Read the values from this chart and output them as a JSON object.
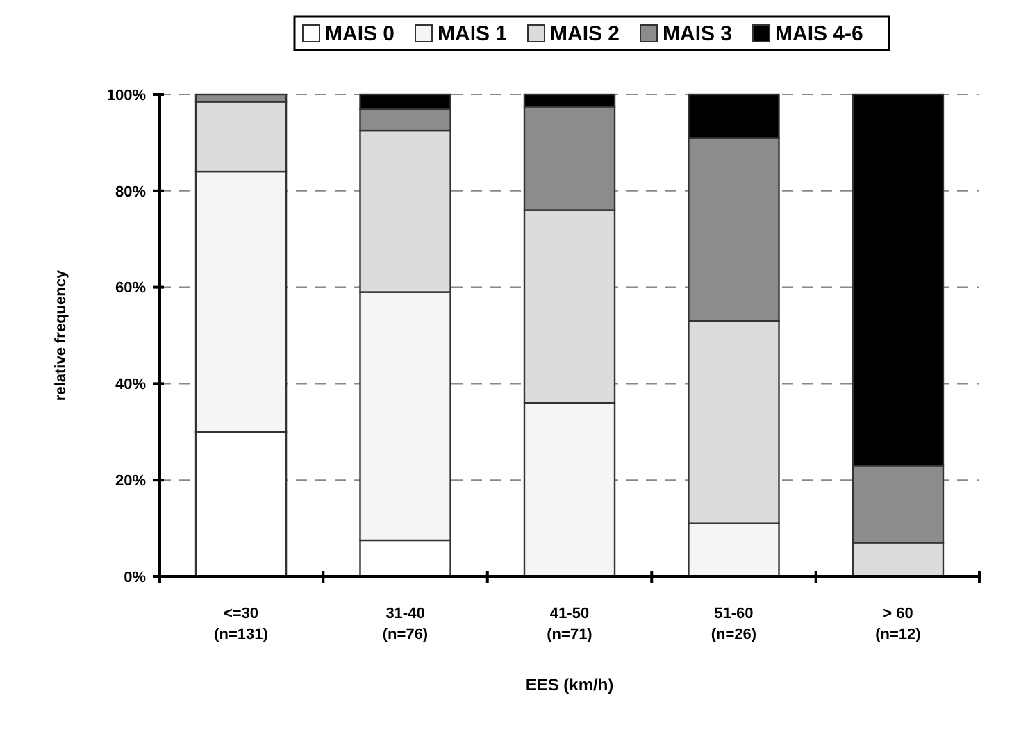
{
  "chart_data": {
    "type": "bar",
    "stacked": true,
    "xlabel": "EES  (km/h)",
    "ylabel": "relative frequency",
    "categories": [
      "<=30\n(n=131)",
      "31-40\n(n=76)",
      "41-50\n(n=71)",
      "51-60\n(n=26)",
      "> 60\n(n=12)"
    ],
    "series": [
      {
        "name": "MAIS 0",
        "color": "#ffffff",
        "values": [
          30,
          7.5,
          0,
          0,
          0
        ]
      },
      {
        "name": "MAIS 1",
        "color": "#f5f5f5",
        "values": [
          54,
          51.5,
          36,
          11,
          0
        ]
      },
      {
        "name": "MAIS 2",
        "color": "#dcdcdc",
        "values": [
          14.5,
          33.5,
          40,
          42,
          7
        ]
      },
      {
        "name": "MAIS 3",
        "color": "#8c8c8c",
        "values": [
          1.5,
          4.5,
          21.5,
          38,
          16
        ]
      },
      {
        "name": "MAIS 4-6",
        "color": "#000000",
        "values": [
          0,
          3,
          2.5,
          9,
          77
        ]
      }
    ],
    "ylim": [
      0,
      100
    ],
    "yticks": [
      {
        "value": 0,
        "label": "0%"
      },
      {
        "value": 20,
        "label": "20%"
      },
      {
        "value": 40,
        "label": "40%"
      },
      {
        "value": 60,
        "label": "60%"
      },
      {
        "value": 80,
        "label": "80%"
      },
      {
        "value": 100,
        "label": "100%"
      }
    ],
    "grid": "y",
    "legend": "top"
  }
}
